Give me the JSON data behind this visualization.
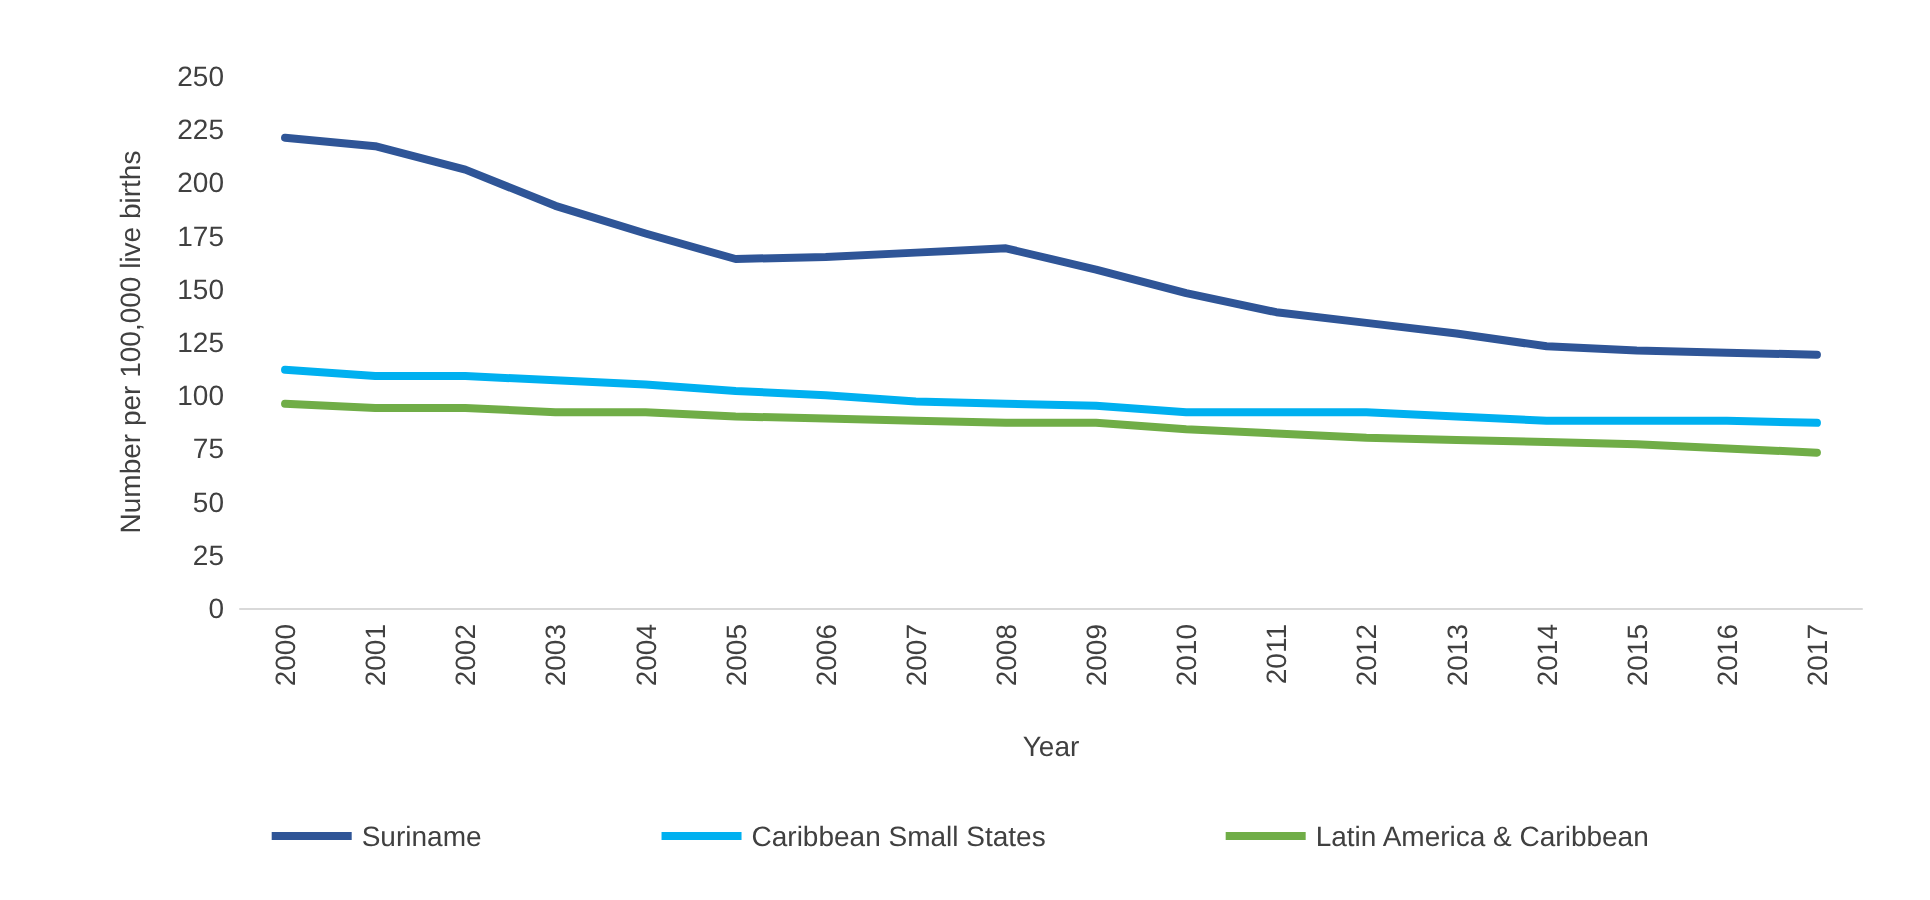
{
  "chart_data": {
    "type": "line",
    "xlabel": "Year",
    "ylabel": "Number per 100,000 live births",
    "categories": [
      "2000",
      "2001",
      "2002",
      "2003",
      "2004",
      "2005",
      "2006",
      "2007",
      "2008",
      "2009",
      "2010",
      "2011",
      "2012",
      "2013",
      "2014",
      "2015",
      "2016",
      "2017"
    ],
    "series": [
      {
        "name": "Suriname",
        "color": "#2f5597",
        "values": [
          221,
          217,
          206,
          189,
          176,
          164,
          165,
          167,
          169,
          159,
          148,
          139,
          134,
          129,
          123,
          121,
          120,
          119
        ]
      },
      {
        "name": "Caribbean Small States",
        "color": "#00b0f0",
        "values": [
          112,
          109,
          109,
          107,
          105,
          102,
          100,
          97,
          96,
          95,
          92,
          92,
          92,
          90,
          88,
          88,
          88,
          87
        ]
      },
      {
        "name": "Latin America & Caribbean",
        "color": "#70ad47",
        "values": [
          96,
          94,
          94,
          92,
          92,
          90,
          89,
          88,
          87,
          87,
          84,
          82,
          80,
          79,
          78,
          77,
          75,
          73
        ]
      }
    ],
    "ylim": [
      0,
      250
    ],
    "yticks": [
      0,
      25,
      50,
      75,
      100,
      125,
      150,
      175,
      200,
      225,
      250
    ],
    "grid": false,
    "legend": "bottom",
    "marker": "none",
    "line_style": "solid"
  }
}
